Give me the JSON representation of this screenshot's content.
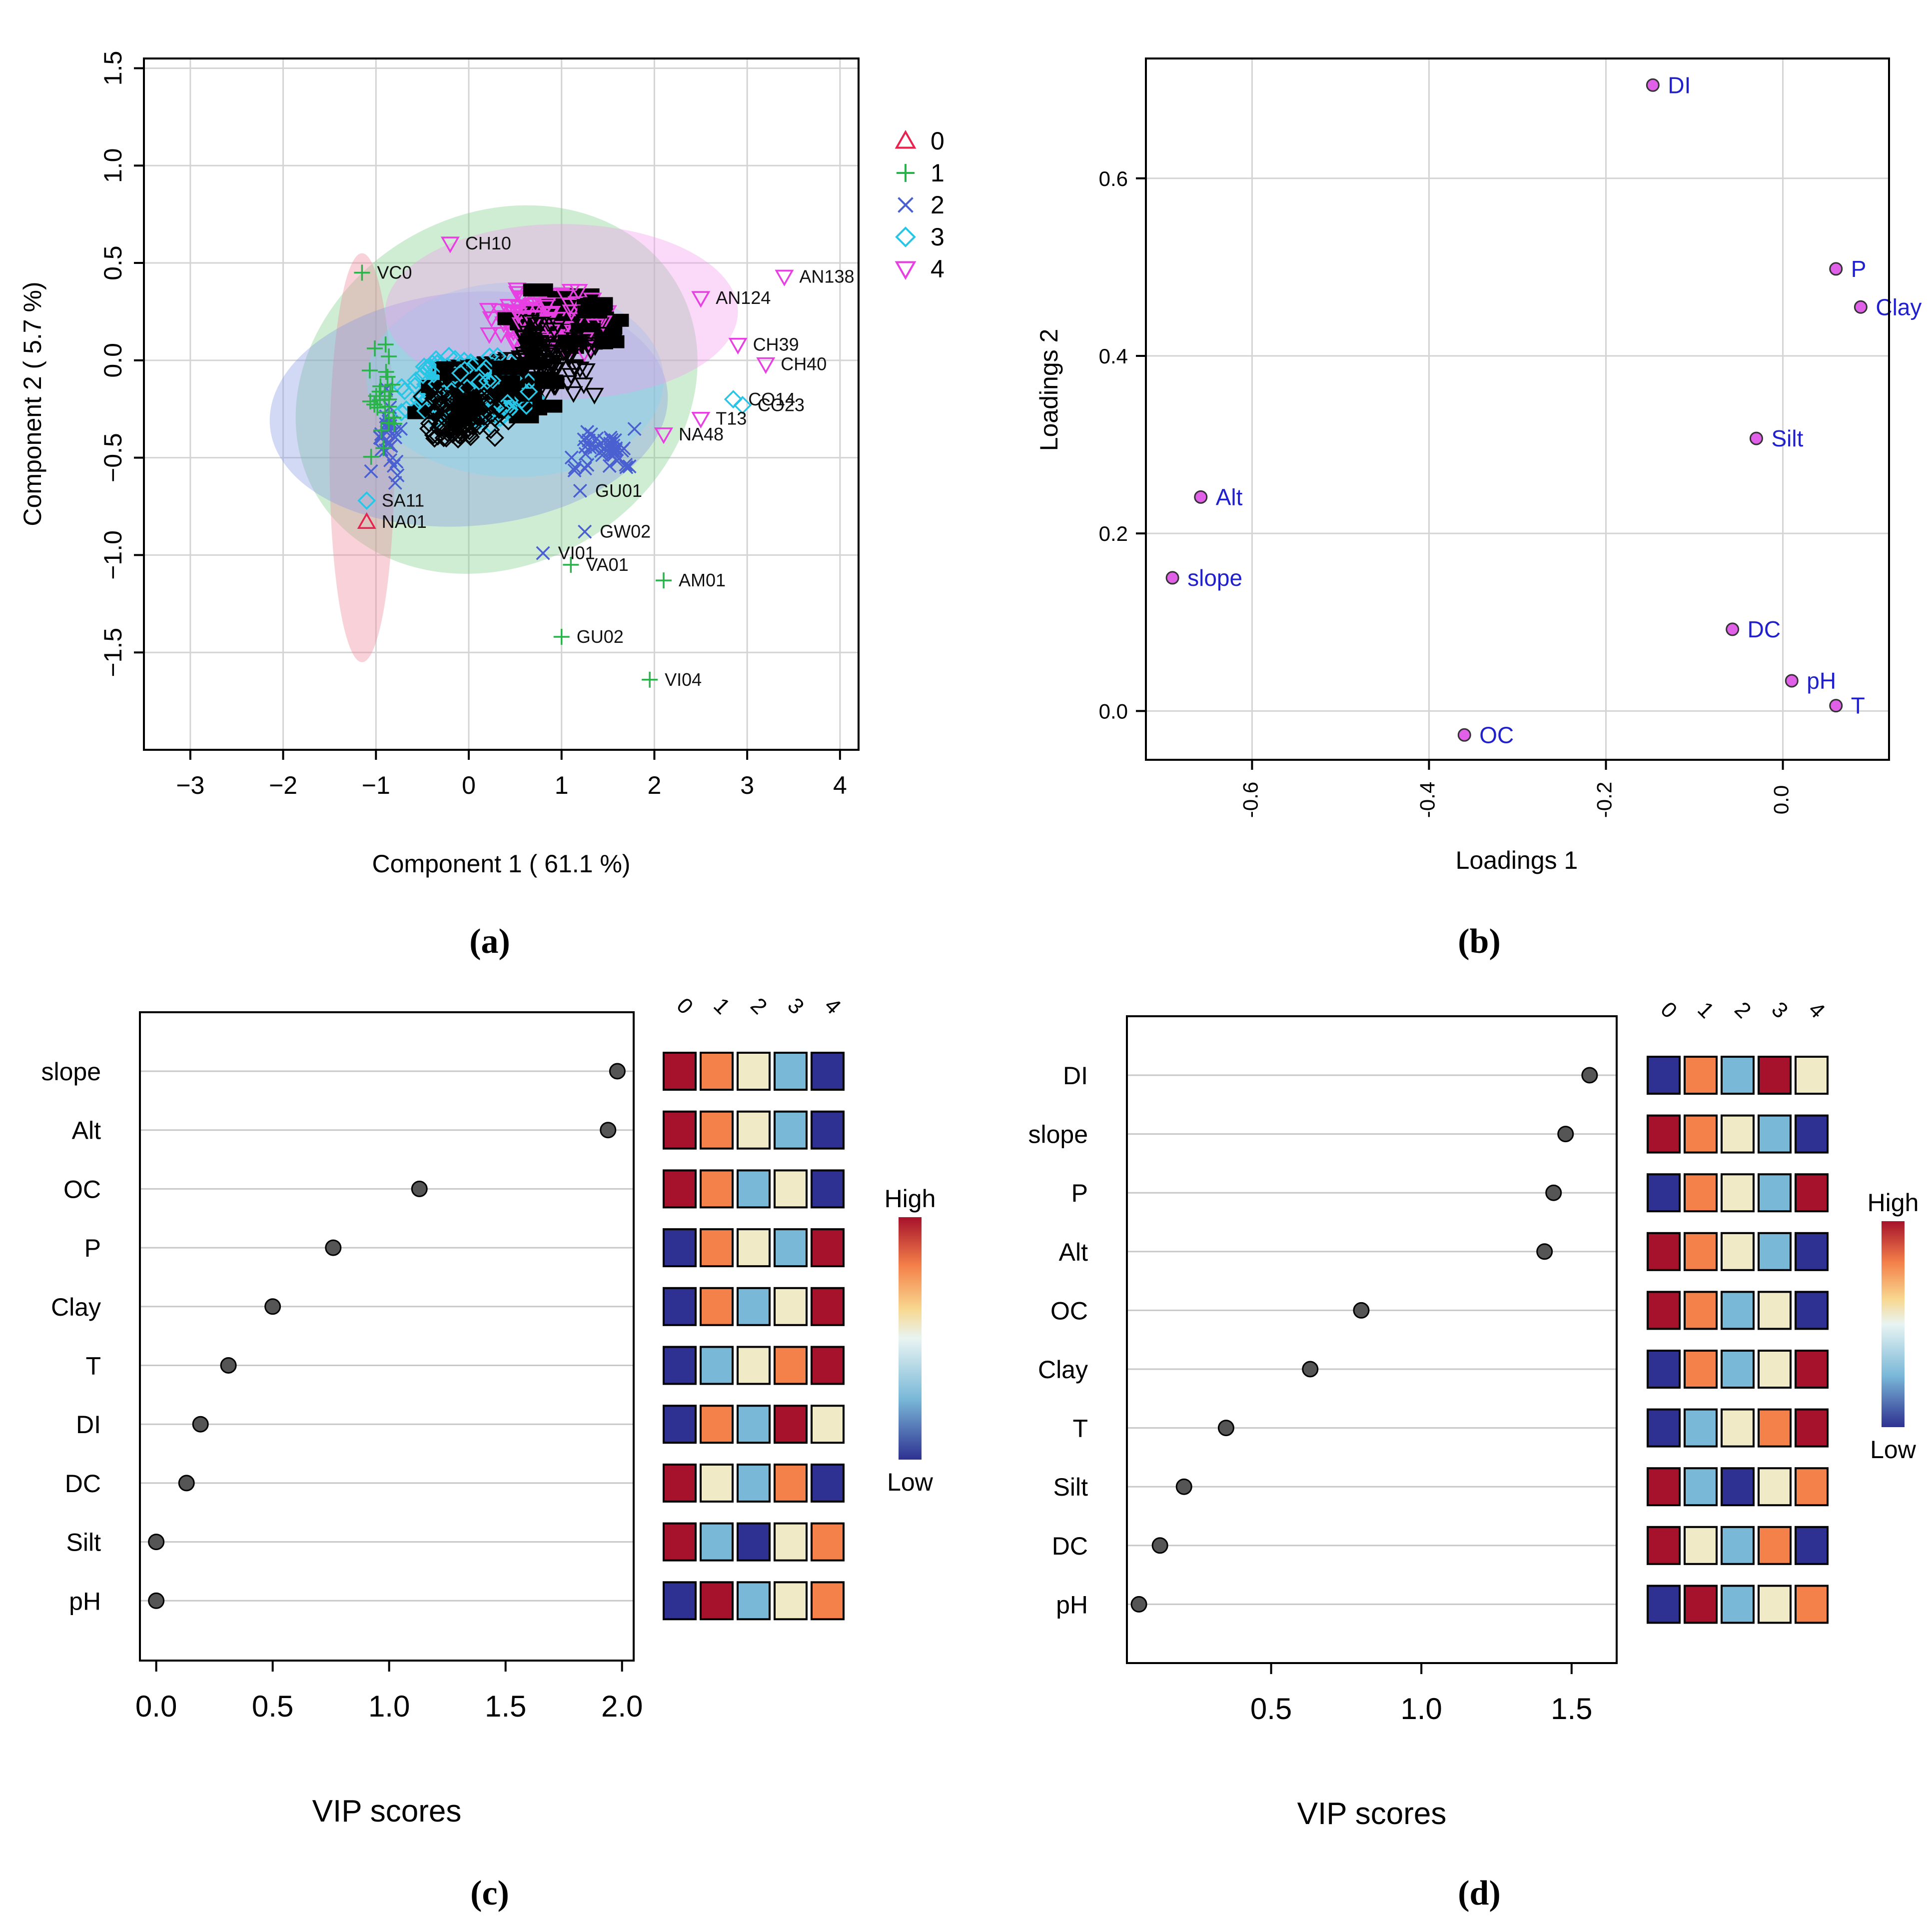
{
  "panel_labels": {
    "a": "(a)",
    "b": "(b)",
    "c": "(c)",
    "d": "(d)"
  },
  "chart_data": [
    {
      "id": "a",
      "type": "scatter",
      "xlabel": "Component 1 ( 61.1 %)",
      "ylabel": "Component 2 ( 5.7 %)",
      "xlim": [
        -3.5,
        4.2
      ],
      "ylim": [
        -2.0,
        1.55
      ],
      "xticks": [
        -3,
        -2,
        -1,
        0,
        1,
        2,
        3,
        4
      ],
      "yticks": [
        -1.5,
        -1.0,
        -0.5,
        0.0,
        0.5,
        1.0,
        1.5
      ],
      "xticklabels": [
        "−3",
        "−2",
        "−1",
        "0",
        "1",
        "2",
        "3",
        "4"
      ],
      "yticklabels": [
        "−1.5",
        "−1.0",
        "−0.5",
        "0.0",
        "0.5",
        "1.0",
        "1.5"
      ],
      "grid": true,
      "legend": [
        {
          "label": "0",
          "color": "#e8224e",
          "marker": "triangle-up"
        },
        {
          "label": "1",
          "color": "#2ab34a",
          "marker": "plus"
        },
        {
          "label": "2",
          "color": "#4a5fd0",
          "marker": "cross"
        },
        {
          "label": "3",
          "color": "#27c6e6",
          "marker": "diamond"
        },
        {
          "label": "4",
          "color": "#e83fe3",
          "marker": "triangle-down"
        }
      ],
      "ellipses": [
        {
          "group": "1",
          "cx": 0.3,
          "cy": -0.15,
          "rx": 2.25,
          "ry": 0.9,
          "angle": -30,
          "color": "#7fd08a"
        },
        {
          "group": "0",
          "cx": -1.15,
          "cy": -0.5,
          "rx": 0.35,
          "ry": 1.05,
          "angle": 0,
          "color": "#f08a9a"
        },
        {
          "group": "2",
          "cx": 0.0,
          "cy": -0.25,
          "rx": 2.15,
          "ry": 0.6,
          "angle": -5,
          "color": "#8a9ae6"
        },
        {
          "group": "3",
          "cx": 0.5,
          "cy": -0.1,
          "rx": 1.6,
          "ry": 0.5,
          "angle": 0,
          "color": "#82d5ee"
        },
        {
          "group": "4",
          "cx": 1.0,
          "cy": 0.25,
          "rx": 1.9,
          "ry": 0.45,
          "angle": 0,
          "color": "#f29af0"
        }
      ],
      "labeled_points": [
        {
          "label": "AN138",
          "x": 3.4,
          "y": 0.43,
          "group": "4"
        },
        {
          "label": "AN124",
          "x": 2.5,
          "y": 0.32,
          "group": "4"
        },
        {
          "label": "CH39",
          "x": 2.9,
          "y": 0.08,
          "group": "4"
        },
        {
          "label": "CH40",
          "x": 3.2,
          "y": -0.02,
          "group": "4"
        },
        {
          "label": "CH10",
          "x": -0.2,
          "y": 0.6,
          "group": "4"
        },
        {
          "label": "CO23",
          "x": 2.95,
          "y": -0.23,
          "group": "3"
        },
        {
          "label": "CO14",
          "x": 2.85,
          "y": -0.2,
          "group": "3"
        },
        {
          "label": "NA48",
          "x": 2.1,
          "y": -0.38,
          "group": "4"
        },
        {
          "label": "T13",
          "x": 2.5,
          "y": -0.3,
          "group": "4"
        },
        {
          "label": "VI01",
          "x": 0.8,
          "y": -0.99,
          "group": "2"
        },
        {
          "label": "GW02",
          "x": 1.25,
          "y": -0.88,
          "group": "2"
        },
        {
          "label": "GU01",
          "x": 1.2,
          "y": -0.67,
          "group": "2"
        },
        {
          "label": "VA01",
          "x": 1.1,
          "y": -1.05,
          "group": "1"
        },
        {
          "label": "AM01",
          "x": 2.1,
          "y": -1.13,
          "group": "1"
        },
        {
          "label": "GU02",
          "x": 1.0,
          "y": -1.42,
          "group": "1"
        },
        {
          "label": "VI04",
          "x": 1.95,
          "y": -1.64,
          "group": "1"
        },
        {
          "label": "VC0",
          "x": -1.15,
          "y": 0.45,
          "group": "1"
        },
        {
          "label": "NA01",
          "x": -1.1,
          "y": -0.83,
          "group": "0"
        },
        {
          "label": "SA11",
          "x": -1.1,
          "y": -0.72,
          "group": "3"
        }
      ]
    },
    {
      "id": "b",
      "type": "scatter",
      "xlabel": "Loadings 1",
      "ylabel": "Loadings 2",
      "xlim": [
        -0.72,
        0.12
      ],
      "ylim": [
        -0.055,
        0.735
      ],
      "xticks": [
        -0.6,
        -0.4,
        -0.2,
        0.0
      ],
      "yticks": [
        0.0,
        0.2,
        0.4,
        0.6
      ],
      "xticklabels": [
        "-0.6",
        "-0.4",
        "-0.2",
        "0.0"
      ],
      "yticklabels": [
        "0.0",
        "0.2",
        "0.4",
        "0.6"
      ],
      "grid": true,
      "point_color": "#e060e8",
      "label_color": "#1f1fd0",
      "points": [
        {
          "label": "DI",
          "x": -0.147,
          "y": 0.705
        },
        {
          "label": "P",
          "x": 0.06,
          "y": 0.498
        },
        {
          "label": "Clay",
          "x": 0.088,
          "y": 0.455
        },
        {
          "label": "Silt",
          "x": -0.03,
          "y": 0.307
        },
        {
          "label": "Alt",
          "x": -0.658,
          "y": 0.241
        },
        {
          "label": "slope",
          "x": -0.69,
          "y": 0.15
        },
        {
          "label": "DC",
          "x": -0.057,
          "y": 0.092
        },
        {
          "label": "pH",
          "x": 0.01,
          "y": 0.034
        },
        {
          "label": "T",
          "x": 0.06,
          "y": 0.006
        },
        {
          "label": "OC",
          "x": -0.36,
          "y": -0.027
        }
      ]
    },
    {
      "id": "c",
      "type": "dot",
      "xlabel": "VIP scores",
      "xlim": [
        -0.07,
        2.05
      ],
      "xticks": [
        0.0,
        0.5,
        1.0,
        1.5,
        2.0
      ],
      "xticklabels": [
        "0.0",
        "0.5",
        "1.0",
        "1.5",
        "2.0"
      ],
      "variables": [
        "slope",
        "Alt",
        "OC",
        "P",
        "Clay",
        "T",
        "DI",
        "DC",
        "Silt",
        "pH"
      ],
      "values": [
        1.98,
        1.94,
        1.13,
        0.76,
        0.5,
        0.31,
        0.19,
        0.13,
        0.0,
        0.0
      ],
      "heatmap_columns": [
        "0",
        "1",
        "2",
        "3",
        "4"
      ],
      "heatmap_levels": [
        [
          5,
          4,
          3,
          2,
          1
        ],
        [
          5,
          4,
          3,
          2,
          1
        ],
        [
          5,
          4,
          2,
          3,
          1
        ],
        [
          1,
          4,
          3,
          2,
          5
        ],
        [
          1,
          4,
          2,
          3,
          5
        ],
        [
          1,
          2,
          3,
          4,
          5
        ],
        [
          1,
          4,
          2,
          5,
          3
        ],
        [
          5,
          3,
          2,
          4,
          1
        ],
        [
          5,
          2,
          1,
          3,
          4
        ],
        [
          1,
          5,
          2,
          3,
          4
        ]
      ],
      "colorbar": {
        "high": "High",
        "low": "Low"
      },
      "level_colors": [
        "#2e3191",
        "#7ab8d8",
        "#f1eac7",
        "#f4804a",
        "#a6122b"
      ]
    },
    {
      "id": "d",
      "type": "dot",
      "xlabel": "VIP scores",
      "xlim": [
        0.02,
        1.65
      ],
      "xticks": [
        0.5,
        1.0,
        1.5
      ],
      "xticklabels": [
        "0.5",
        "1.0",
        "1.5"
      ],
      "variables": [
        "DI",
        "slope",
        "P",
        "Alt",
        "OC",
        "Clay",
        "T",
        "Silt",
        "DC",
        "pH"
      ],
      "values": [
        1.56,
        1.48,
        1.44,
        1.41,
        0.8,
        0.63,
        0.35,
        0.21,
        0.13,
        0.06
      ],
      "heatmap_columns": [
        "0",
        "1",
        "2",
        "3",
        "4"
      ],
      "heatmap_levels": [
        [
          1,
          4,
          2,
          5,
          3
        ],
        [
          5,
          4,
          3,
          2,
          1
        ],
        [
          1,
          4,
          3,
          2,
          5
        ],
        [
          5,
          4,
          3,
          2,
          1
        ],
        [
          5,
          4,
          2,
          3,
          1
        ],
        [
          1,
          4,
          2,
          3,
          5
        ],
        [
          1,
          2,
          3,
          4,
          5
        ],
        [
          5,
          2,
          1,
          3,
          4
        ],
        [
          5,
          3,
          2,
          4,
          1
        ],
        [
          1,
          5,
          2,
          3,
          4
        ]
      ],
      "colorbar": {
        "high": "High",
        "low": "Low"
      },
      "level_colors": [
        "#2e3191",
        "#7ab8d8",
        "#f1eac7",
        "#f4804a",
        "#a6122b"
      ]
    }
  ]
}
